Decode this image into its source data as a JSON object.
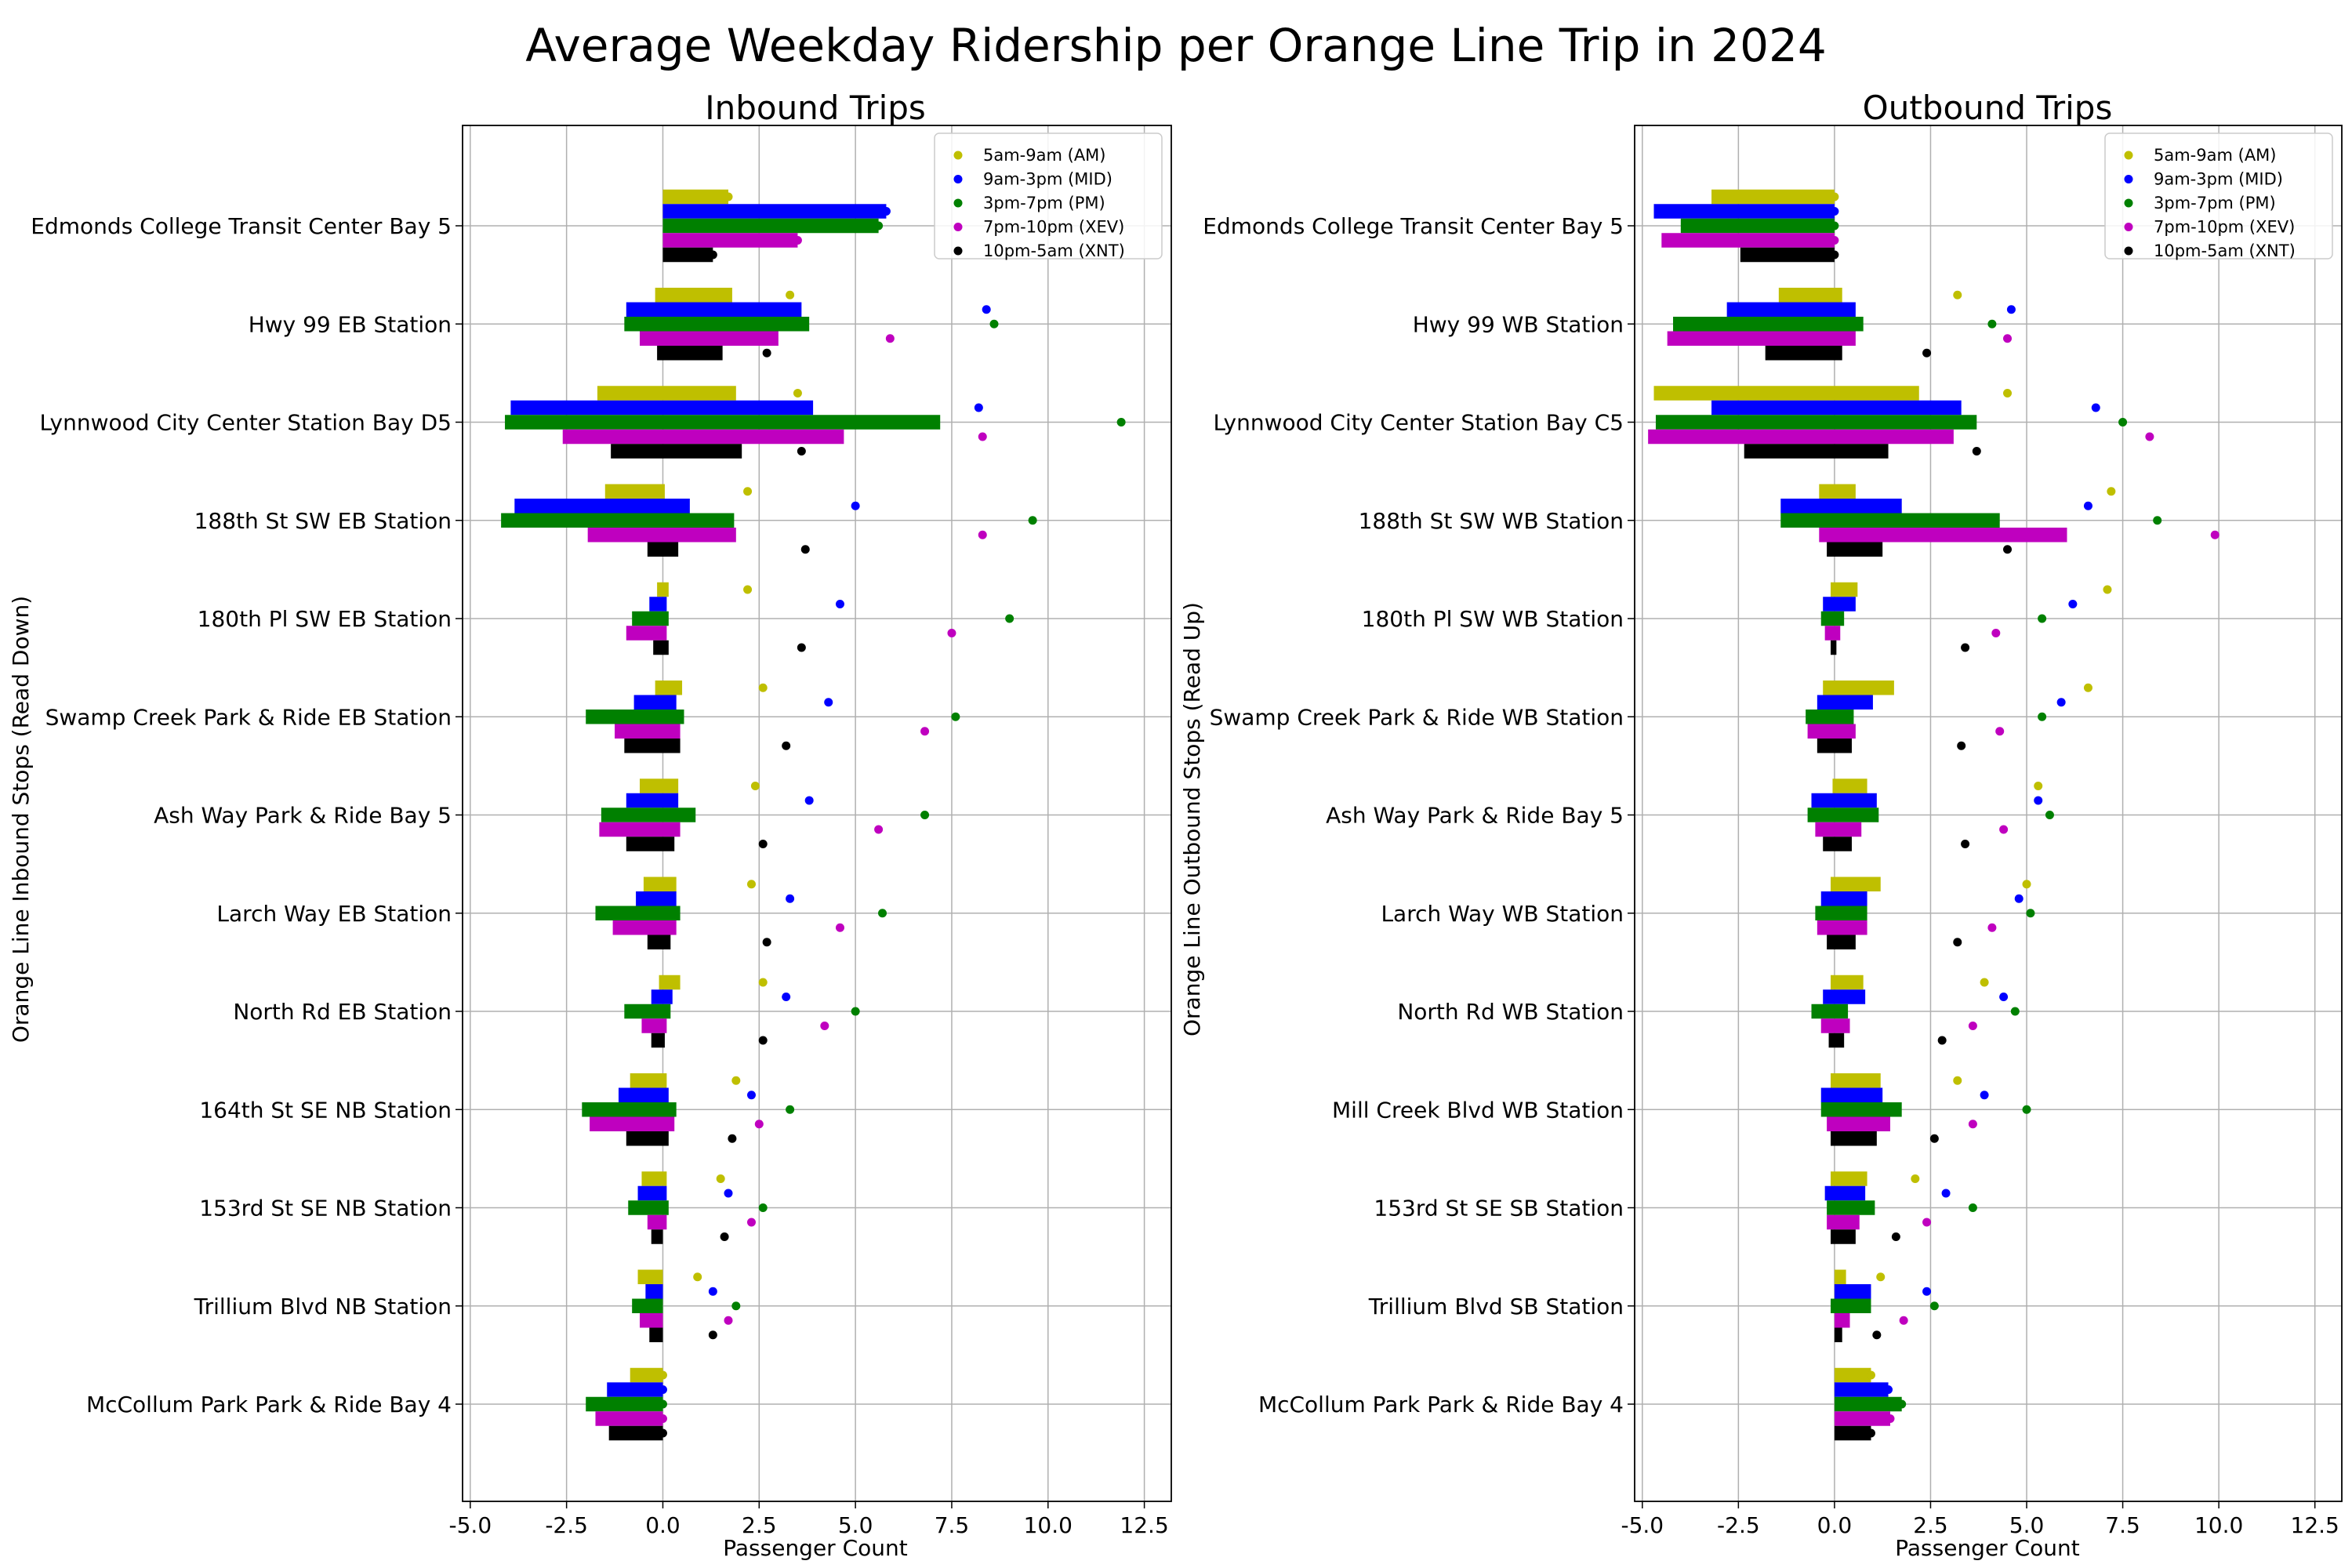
{
  "figure_title": "Average Weekday Ridership per Orange Line Trip in 2024",
  "colors": {
    "AM": "#bfbf00",
    "MID": "#0000ff",
    "PM": "#008000",
    "XEV": "#bf00bf",
    "XNT": "#000000",
    "grid": "#b0b0b0"
  },
  "chart_data": [
    {
      "type": "bar",
      "orientation": "horizontal",
      "title": "Inbound Trips",
      "xlabel": "Passenger Count",
      "ylabel": "Orange Line Inbound Stops (Read Down)",
      "xlim": [
        -5.2,
        13.2
      ],
      "xticks": [
        "-5.0",
        "-2.5",
        "0.0",
        "2.5",
        "5.0",
        "7.5",
        "10.0",
        "12.5"
      ],
      "grid": true,
      "legend_position": "top-right",
      "series_names": [
        "5am-9am (AM)",
        "9am-3pm (MID)",
        "3pm-7pm (PM)",
        "7pm-10pm (XEV)",
        "10pm-5am (XNT)"
      ],
      "categories": [
        "Edmonds College Transit Center Bay 5",
        "Hwy 99 EB Station",
        "Lynnwood City Center Station Bay D5",
        "188th St SW EB Station",
        "180th Pl SW EB Station",
        "Swamp Creek Park & Ride EB Station",
        "Ash Way Park & Ride Bay 5",
        "Larch Way EB Station",
        "North Rd EB Station",
        "164th St SE NB Station",
        "153rd St SE NB Station",
        "Trillium Blvd NB Station",
        "McCollum Park Park & Ride Bay 4"
      ],
      "bars": {
        "AM": [
          [
            0,
            1.7
          ],
          [
            -0.2,
            1.8
          ],
          [
            -1.7,
            1.9
          ],
          [
            -1.5,
            0.05
          ],
          [
            -0.15,
            0.15
          ],
          [
            -0.2,
            0.5
          ],
          [
            -0.6,
            0.4
          ],
          [
            -0.5,
            0.35
          ],
          [
            -0.1,
            0.45
          ],
          [
            -0.85,
            0.1
          ],
          [
            -0.55,
            0.1
          ],
          [
            -0.65,
            0.0
          ],
          [
            -0.85,
            0.0
          ]
        ],
        "MID": [
          [
            0,
            5.8
          ],
          [
            -0.95,
            3.6
          ],
          [
            -3.95,
            3.9
          ],
          [
            -3.85,
            0.7
          ],
          [
            -0.35,
            0.1
          ],
          [
            -0.75,
            0.35
          ],
          [
            -0.95,
            0.4
          ],
          [
            -0.7,
            0.35
          ],
          [
            -0.3,
            0.25
          ],
          [
            -1.15,
            0.15
          ],
          [
            -0.65,
            0.1
          ],
          [
            -0.45,
            0.0
          ],
          [
            -1.45,
            0.0
          ]
        ],
        "PM": [
          [
            0,
            5.6
          ],
          [
            -1.0,
            3.8
          ],
          [
            -4.1,
            7.2
          ],
          [
            -4.2,
            1.85
          ],
          [
            -0.8,
            0.15
          ],
          [
            -2.0,
            0.55
          ],
          [
            -1.6,
            0.85
          ],
          [
            -1.75,
            0.45
          ],
          [
            -1.0,
            0.2
          ],
          [
            -2.1,
            0.35
          ],
          [
            -0.9,
            0.15
          ],
          [
            -0.8,
            0.0
          ],
          [
            -2.0,
            0.0
          ]
        ],
        "XEV": [
          [
            0,
            3.5
          ],
          [
            -0.6,
            3.0
          ],
          [
            -2.6,
            4.7
          ],
          [
            -1.95,
            1.9
          ],
          [
            -0.95,
            0.1
          ],
          [
            -1.25,
            0.45
          ],
          [
            -1.65,
            0.45
          ],
          [
            -1.3,
            0.35
          ],
          [
            -0.55,
            0.1
          ],
          [
            -1.9,
            0.3
          ],
          [
            -0.4,
            0.1
          ],
          [
            -0.6,
            0.0
          ],
          [
            -1.75,
            0.0
          ]
        ],
        "XNT": [
          [
            0,
            1.3
          ],
          [
            -0.15,
            1.55
          ],
          [
            -1.35,
            2.05
          ],
          [
            -0.4,
            0.4
          ],
          [
            -0.25,
            0.15
          ],
          [
            -1.0,
            0.45
          ],
          [
            -0.95,
            0.3
          ],
          [
            -0.4,
            0.2
          ],
          [
            -0.3,
            0.05
          ],
          [
            -0.95,
            0.15
          ],
          [
            -0.3,
            0.0
          ],
          [
            -0.35,
            0.0
          ],
          [
            -1.4,
            0.0
          ]
        ]
      },
      "points": {
        "AM": [
          1.7,
          3.3,
          3.5,
          2.2,
          2.2,
          2.6,
          2.4,
          2.3,
          2.6,
          1.9,
          1.5,
          0.9,
          0.0
        ],
        "MID": [
          5.8,
          8.4,
          8.2,
          5.0,
          4.6,
          4.3,
          3.8,
          3.3,
          3.2,
          2.3,
          1.7,
          1.3,
          0.0
        ],
        "PM": [
          5.6,
          8.6,
          11.9,
          9.6,
          9.0,
          7.6,
          6.8,
          5.7,
          5.0,
          3.3,
          2.6,
          1.9,
          0.0
        ],
        "XEV": [
          3.5,
          5.9,
          8.3,
          8.3,
          7.5,
          6.8,
          5.6,
          4.6,
          4.2,
          2.5,
          2.3,
          1.7,
          0.0
        ],
        "XNT": [
          1.3,
          2.7,
          3.6,
          3.7,
          3.6,
          3.2,
          2.6,
          2.7,
          2.6,
          1.8,
          1.6,
          1.3,
          0.0
        ]
      }
    },
    {
      "type": "bar",
      "orientation": "horizontal",
      "title": "Outbound Trips",
      "xlabel": "Passenger Count",
      "ylabel": "Orange Line Outbound Stops (Read Up)",
      "xlim": [
        -5.2,
        13.2
      ],
      "xticks": [
        "-5.0",
        "-2.5",
        "0.0",
        "2.5",
        "5.0",
        "7.5",
        "10.0",
        "12.5"
      ],
      "grid": true,
      "legend_position": "top-right",
      "series_names": [
        "5am-9am (AM)",
        "9am-3pm (MID)",
        "3pm-7pm (PM)",
        "7pm-10pm (XEV)",
        "10pm-5am (XNT)"
      ],
      "categories": [
        "Edmonds College Transit Center Bay 5",
        "Hwy 99 WB Station",
        "Lynnwood City Center Station Bay C5",
        "188th St SW WB Station",
        "180th Pl SW WB Station",
        "Swamp Creek Park & Ride WB Station",
        "Ash Way Park & Ride Bay 5",
        "Larch Way WB Station",
        "North Rd WB Station",
        "Mill Creek Blvd WB Station",
        "153rd St SE SB Station",
        "Trillium Blvd SB Station",
        "McCollum Park Park & Ride Bay 4"
      ],
      "bars": {
        "AM": [
          [
            -3.2,
            0.0
          ],
          [
            -1.45,
            0.2
          ],
          [
            -4.7,
            2.2
          ],
          [
            -0.4,
            0.55
          ],
          [
            -0.1,
            0.6
          ],
          [
            -0.3,
            1.55
          ],
          [
            -0.05,
            0.85
          ],
          [
            -0.1,
            1.2
          ],
          [
            -0.1,
            0.75
          ],
          [
            -0.1,
            1.2
          ],
          [
            -0.1,
            0.85
          ],
          [
            0.0,
            0.3
          ],
          [
            0.0,
            0.95
          ]
        ],
        "MID": [
          [
            -4.7,
            0.0
          ],
          [
            -2.8,
            0.55
          ],
          [
            -3.2,
            3.3
          ],
          [
            -1.4,
            1.75
          ],
          [
            -0.3,
            0.55
          ],
          [
            -0.45,
            1.0
          ],
          [
            -0.6,
            1.1
          ],
          [
            -0.35,
            0.85
          ],
          [
            -0.3,
            0.8
          ],
          [
            -0.35,
            1.25
          ],
          [
            -0.25,
            0.8
          ],
          [
            0.0,
            0.95
          ],
          [
            0.0,
            1.4
          ]
        ],
        "PM": [
          [
            -4.0,
            0.0
          ],
          [
            -4.2,
            0.75
          ],
          [
            -4.65,
            3.7
          ],
          [
            -1.4,
            4.3
          ],
          [
            -0.35,
            0.25
          ],
          [
            -0.75,
            0.5
          ],
          [
            -0.7,
            1.15
          ],
          [
            -0.5,
            0.85
          ],
          [
            -0.6,
            0.35
          ],
          [
            -0.35,
            1.75
          ],
          [
            -0.2,
            1.05
          ],
          [
            -0.1,
            0.95
          ],
          [
            0.0,
            1.75
          ]
        ],
        "XEV": [
          [
            -4.5,
            0.0
          ],
          [
            -4.35,
            0.55
          ],
          [
            -4.85,
            3.1
          ],
          [
            -0.4,
            6.05
          ],
          [
            -0.25,
            0.15
          ],
          [
            -0.7,
            0.55
          ],
          [
            -0.5,
            0.7
          ],
          [
            -0.45,
            0.85
          ],
          [
            -0.35,
            0.4
          ],
          [
            -0.2,
            1.45
          ],
          [
            -0.2,
            0.65
          ],
          [
            0.0,
            0.4
          ],
          [
            0.0,
            1.45
          ]
        ],
        "XNT": [
          [
            -2.45,
            0.0
          ],
          [
            -1.8,
            0.2
          ],
          [
            -2.35,
            1.4
          ],
          [
            -0.2,
            1.25
          ],
          [
            -0.1,
            0.05
          ],
          [
            -0.45,
            0.45
          ],
          [
            -0.3,
            0.45
          ],
          [
            -0.2,
            0.55
          ],
          [
            -0.15,
            0.25
          ],
          [
            -0.1,
            1.1
          ],
          [
            -0.1,
            0.55
          ],
          [
            0.0,
            0.2
          ],
          [
            0.0,
            0.95
          ]
        ]
      },
      "points": {
        "AM": [
          0.0,
          3.2,
          4.5,
          7.2,
          7.1,
          6.6,
          5.3,
          5.0,
          3.9,
          3.2,
          2.1,
          1.2,
          0.95
        ],
        "MID": [
          0.0,
          4.6,
          6.8,
          6.6,
          6.2,
          5.9,
          5.3,
          4.8,
          4.4,
          3.9,
          2.9,
          2.4,
          1.4
        ],
        "PM": [
          0.0,
          4.1,
          7.5,
          8.4,
          5.4,
          5.4,
          5.6,
          5.1,
          4.7,
          5.0,
          3.6,
          2.6,
          1.75
        ],
        "XEV": [
          0.0,
          4.5,
          8.2,
          9.9,
          4.2,
          4.3,
          4.4,
          4.1,
          3.6,
          3.6,
          2.4,
          1.8,
          1.45
        ],
        "XNT": [
          0.0,
          2.4,
          3.7,
          4.5,
          3.4,
          3.3,
          3.4,
          3.2,
          2.8,
          2.6,
          1.6,
          1.1,
          0.95
        ]
      }
    }
  ]
}
